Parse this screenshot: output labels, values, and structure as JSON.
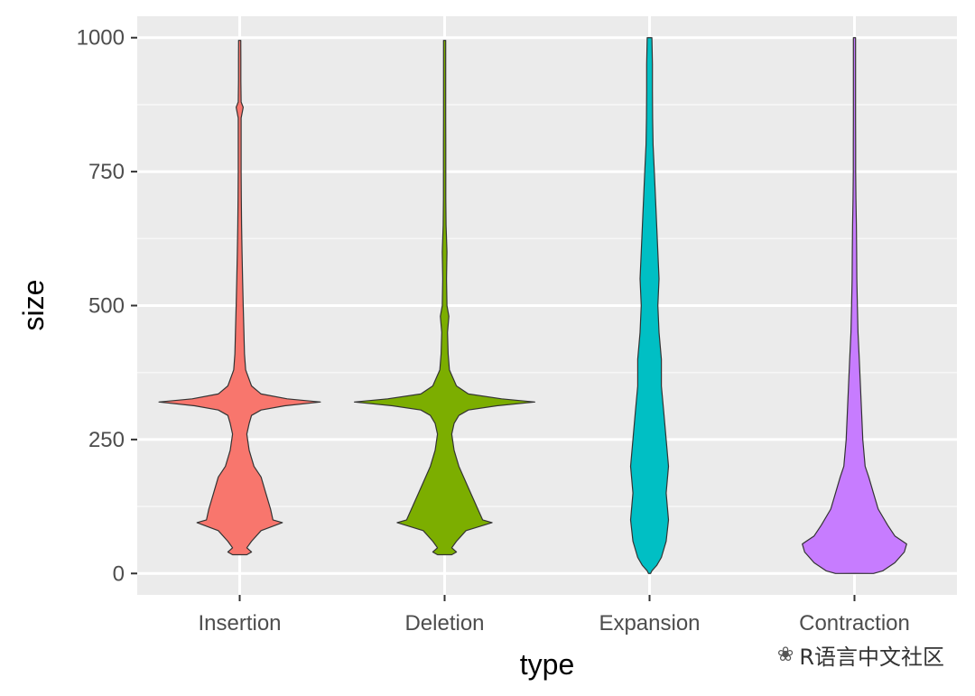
{
  "chart_data": {
    "type": "violin",
    "title": "",
    "xlabel": "type",
    "ylabel": "size",
    "ylim": [
      -40,
      1040
    ],
    "y_ticks": [
      0,
      250,
      500,
      750,
      1000
    ],
    "y_tick_labels": [
      "0",
      "250",
      "500",
      "750",
      "1000"
    ],
    "categories": [
      "Insertion",
      "Deletion",
      "Expansion",
      "Contraction"
    ],
    "grid": true,
    "legend": "none",
    "series": [
      {
        "category": "Insertion",
        "color": "#F8766D",
        "range": [
          35,
          995
        ],
        "density": [
          [
            35,
            0.03
          ],
          [
            40,
            0.05
          ],
          [
            48,
            0.03
          ],
          [
            60,
            0.05
          ],
          [
            80,
            0.09
          ],
          [
            95,
            0.18
          ],
          [
            100,
            0.14
          ],
          [
            120,
            0.13
          ],
          [
            150,
            0.11
          ],
          [
            180,
            0.09
          ],
          [
            200,
            0.06
          ],
          [
            230,
            0.04
          ],
          [
            260,
            0.03
          ],
          [
            280,
            0.04
          ],
          [
            295,
            0.05
          ],
          [
            305,
            0.09
          ],
          [
            313,
            0.19
          ],
          [
            320,
            0.34
          ],
          [
            326,
            0.2
          ],
          [
            335,
            0.09
          ],
          [
            350,
            0.05
          ],
          [
            380,
            0.025
          ],
          [
            410,
            0.02
          ],
          [
            450,
            0.018
          ],
          [
            500,
            0.015
          ],
          [
            550,
            0.012
          ],
          [
            600,
            0.01
          ],
          [
            650,
            0.008
          ],
          [
            700,
            0.007
          ],
          [
            750,
            0.006
          ],
          [
            800,
            0.006
          ],
          [
            850,
            0.006
          ],
          [
            870,
            0.015
          ],
          [
            880,
            0.006
          ],
          [
            920,
            0.005
          ],
          [
            960,
            0.005
          ],
          [
            995,
            0.004
          ]
        ]
      },
      {
        "category": "Deletion",
        "color": "#7CAE00",
        "range": [
          35,
          995
        ],
        "density": [
          [
            35,
            0.03
          ],
          [
            40,
            0.05
          ],
          [
            48,
            0.03
          ],
          [
            60,
            0.05
          ],
          [
            80,
            0.09
          ],
          [
            95,
            0.2
          ],
          [
            100,
            0.16
          ],
          [
            120,
            0.14
          ],
          [
            150,
            0.11
          ],
          [
            180,
            0.08
          ],
          [
            200,
            0.06
          ],
          [
            230,
            0.04
          ],
          [
            260,
            0.03
          ],
          [
            280,
            0.04
          ],
          [
            295,
            0.06
          ],
          [
            305,
            0.1
          ],
          [
            313,
            0.22
          ],
          [
            320,
            0.38
          ],
          [
            326,
            0.24
          ],
          [
            335,
            0.1
          ],
          [
            350,
            0.05
          ],
          [
            380,
            0.02
          ],
          [
            410,
            0.015
          ],
          [
            450,
            0.012
          ],
          [
            480,
            0.018
          ],
          [
            500,
            0.01
          ],
          [
            550,
            0.008
          ],
          [
            600,
            0.01
          ],
          [
            650,
            0.006
          ],
          [
            700,
            0.005
          ],
          [
            750,
            0.005
          ],
          [
            800,
            0.005
          ],
          [
            850,
            0.004
          ],
          [
            900,
            0.004
          ],
          [
            950,
            0.003
          ],
          [
            995,
            0.003
          ]
        ]
      },
      {
        "category": "Expansion",
        "color": "#00BFC4",
        "range": [
          0,
          1000
        ],
        "density": [
          [
            0,
            0.002
          ],
          [
            5,
            0.01
          ],
          [
            15,
            0.03
          ],
          [
            30,
            0.05
          ],
          [
            60,
            0.07
          ],
          [
            100,
            0.08
          ],
          [
            150,
            0.07
          ],
          [
            200,
            0.08
          ],
          [
            250,
            0.07
          ],
          [
            300,
            0.06
          ],
          [
            350,
            0.05
          ],
          [
            400,
            0.05
          ],
          [
            450,
            0.04
          ],
          [
            500,
            0.035
          ],
          [
            550,
            0.04
          ],
          [
            600,
            0.035
          ],
          [
            650,
            0.03
          ],
          [
            700,
            0.025
          ],
          [
            750,
            0.02
          ],
          [
            800,
            0.015
          ],
          [
            850,
            0.013
          ],
          [
            900,
            0.012
          ],
          [
            950,
            0.012
          ],
          [
            1000,
            0.01
          ]
        ]
      },
      {
        "category": "Contraction",
        "color": "#C77CFF",
        "range": [
          0,
          1000
        ],
        "density": [
          [
            0,
            0.08
          ],
          [
            5,
            0.12
          ],
          [
            20,
            0.17
          ],
          [
            40,
            0.21
          ],
          [
            55,
            0.22
          ],
          [
            70,
            0.17
          ],
          [
            90,
            0.14
          ],
          [
            120,
            0.1
          ],
          [
            150,
            0.08
          ],
          [
            180,
            0.06
          ],
          [
            200,
            0.045
          ],
          [
            250,
            0.035
          ],
          [
            300,
            0.03
          ],
          [
            350,
            0.025
          ],
          [
            400,
            0.02
          ],
          [
            450,
            0.015
          ],
          [
            500,
            0.012
          ],
          [
            550,
            0.01
          ],
          [
            600,
            0.009
          ],
          [
            650,
            0.008
          ],
          [
            700,
            0.006
          ],
          [
            750,
            0.005
          ],
          [
            800,
            0.005
          ],
          [
            850,
            0.004
          ],
          [
            900,
            0.004
          ],
          [
            950,
            0.004
          ],
          [
            1000,
            0.003
          ]
        ]
      }
    ]
  },
  "watermark": {
    "icon": "wechat-icon",
    "text": "R语言中文社区"
  }
}
